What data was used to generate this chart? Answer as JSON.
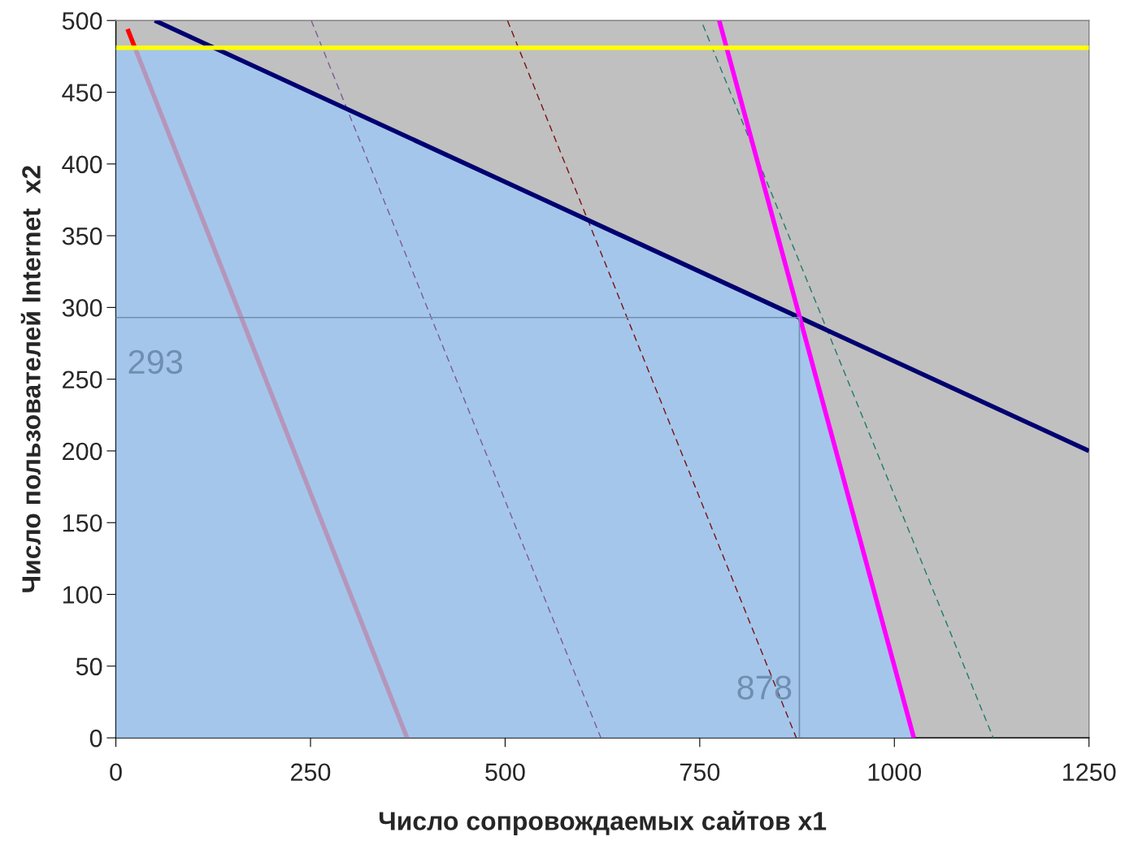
{
  "chart_data": {
    "type": "line",
    "xlabel": "Число сопровождаемых сайтов x1",
    "ylabel": "Число пользователей Internet  x2",
    "xlim": [
      0,
      1250
    ],
    "ylim": [
      0,
      500
    ],
    "xticks": [
      0,
      250,
      500,
      750,
      1000,
      1250
    ],
    "yticks": [
      0,
      50,
      100,
      150,
      200,
      250,
      300,
      350,
      400,
      450,
      500
    ],
    "grid": false,
    "legend": false,
    "series": [
      {
        "type": "line",
        "color": "#ff0000",
        "line_style": "solid",
        "x": [
          15,
          374
        ],
        "values": [
          494,
          0
        ]
      },
      {
        "type": "area",
        "color": "#9cc8f9",
        "x": [
          0,
          126,
          878,
          1025
        ],
        "values": [
          481,
          481,
          293,
          0
        ]
      },
      {
        "type": "line",
        "color": "#7a5a9a",
        "line_style": "dashed",
        "x": [
          251,
          623
        ],
        "values": [
          500,
          0
        ]
      },
      {
        "type": "line",
        "color": "#7a1010",
        "line_style": "dashed",
        "x": [
          503,
          874
        ],
        "values": [
          500,
          0
        ]
      },
      {
        "type": "line",
        "color": "#1f7a6a",
        "line_style": "dashed",
        "x": [
          754,
          1127
        ],
        "values": [
          497,
          0
        ]
      },
      {
        "type": "line",
        "color": "#000070",
        "line_style": "solid",
        "x": [
          50,
          1250
        ],
        "values": [
          500,
          200
        ]
      },
      {
        "type": "line",
        "color": "#ff00ff",
        "line_style": "solid",
        "x": [
          775,
          1025
        ],
        "values": [
          500,
          0
        ]
      },
      {
        "type": "line",
        "color": "#ffff00",
        "line_style": "solid",
        "x": [
          0,
          1250
        ],
        "values": [
          481,
          481
        ]
      }
    ],
    "ref_lines": [
      {
        "axis": "y",
        "value": 293,
        "label": "293",
        "color": "#6f8fb0"
      },
      {
        "axis": "x",
        "value": 878,
        "label": "878",
        "color": "#6f8fb0"
      }
    ]
  }
}
